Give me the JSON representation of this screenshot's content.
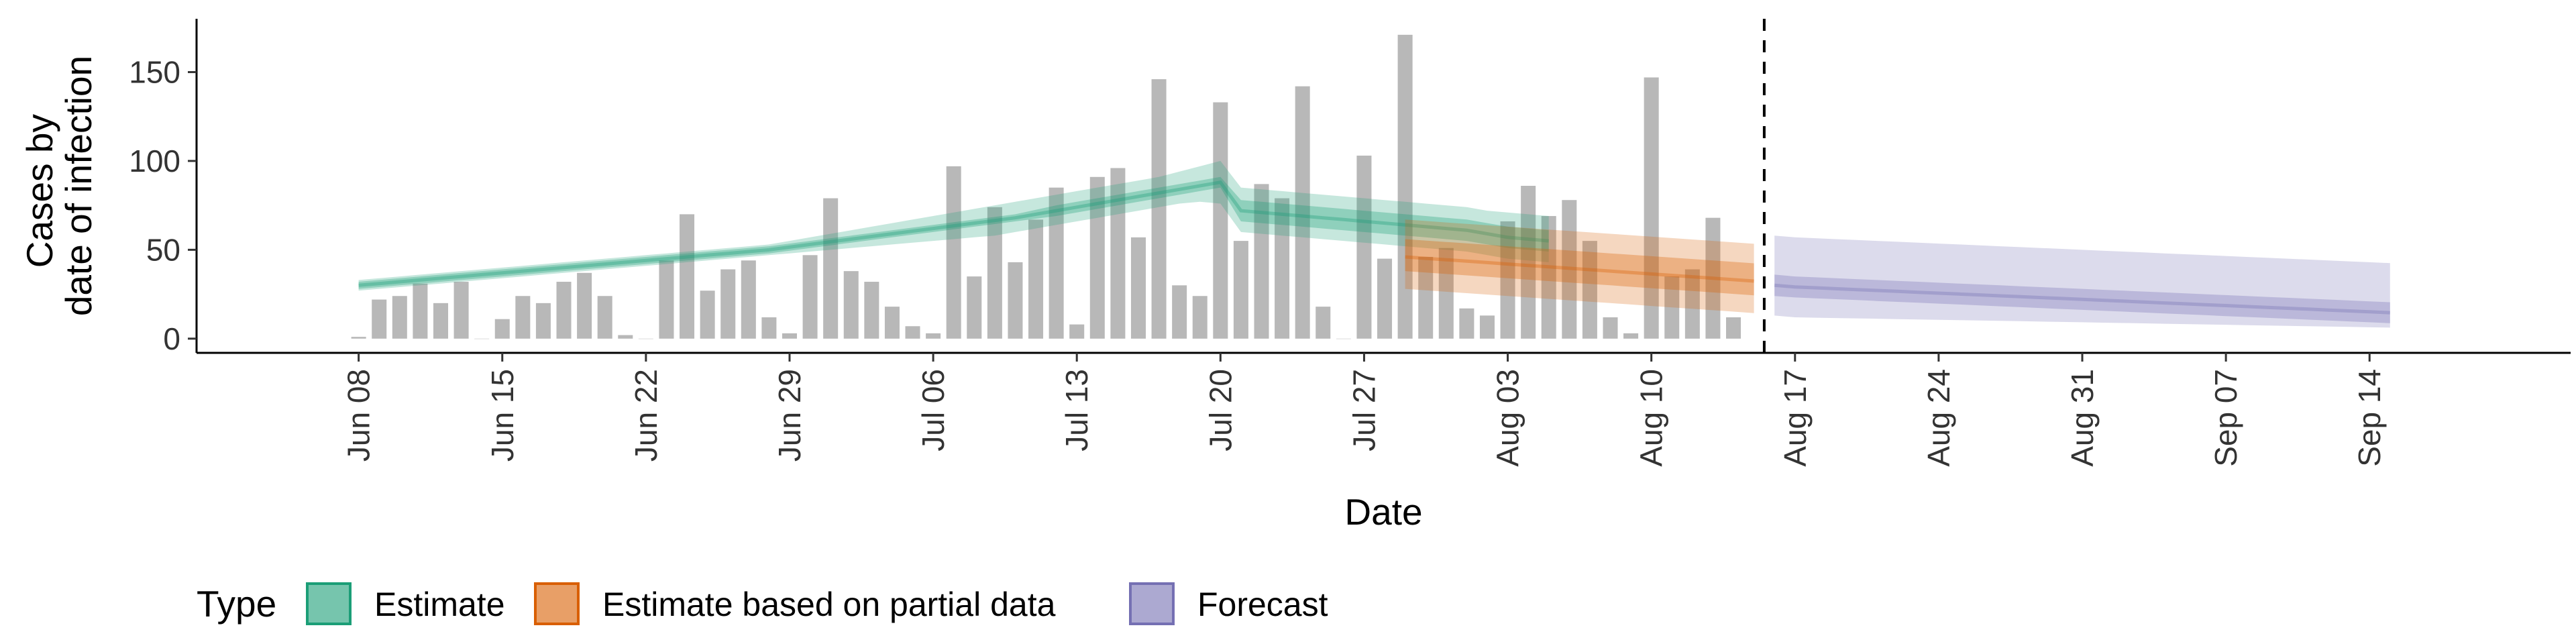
{
  "chart_data": {
    "type": "bar",
    "xlabel": "Date",
    "ylabel_lines": [
      "Cases by",
      "date of infection"
    ],
    "ylim": [
      -8,
      180
    ],
    "y_ticks": [
      0,
      50,
      100,
      150
    ],
    "y_tick_labels": [
      "0",
      "50",
      "100",
      "150"
    ],
    "x_range_day_index": [
      -7.9,
      107.8
    ],
    "x_ticks": [
      {
        "day": 0,
        "label": "Jun 08"
      },
      {
        "day": 7,
        "label": "Jun 15"
      },
      {
        "day": 14,
        "label": "Jun 22"
      },
      {
        "day": 21,
        "label": "Jun 29"
      },
      {
        "day": 28,
        "label": "Jul 06"
      },
      {
        "day": 35,
        "label": "Jul 13"
      },
      {
        "day": 42,
        "label": "Jul 20"
      },
      {
        "day": 49,
        "label": "Jul 27"
      },
      {
        "day": 56,
        "label": "Aug 03"
      },
      {
        "day": 63,
        "label": "Aug 10"
      },
      {
        "day": 70,
        "label": "Aug 17"
      },
      {
        "day": 77,
        "label": "Aug 24"
      },
      {
        "day": 84,
        "label": "Aug 31"
      },
      {
        "day": 91,
        "label": "Sep 07"
      },
      {
        "day": 98,
        "label": "Sep 14"
      }
    ],
    "bars_start_day": 0,
    "bars_values": [
      1,
      22,
      24,
      31,
      20,
      32,
      0,
      11,
      24,
      20,
      32,
      37,
      24,
      2,
      0,
      44,
      70,
      27,
      39,
      44,
      12,
      3,
      47,
      79,
      38,
      32,
      18,
      7,
      3,
      97,
      35,
      74,
      43,
      67,
      85,
      8,
      91,
      96,
      57,
      146,
      30,
      24,
      133,
      55,
      87,
      79,
      142,
      18,
      0,
      103,
      45,
      171,
      46,
      51,
      17,
      13,
      66,
      86,
      69,
      78,
      55,
      12,
      3,
      147,
      35,
      39,
      68,
      12
    ],
    "vline_day": 68.5,
    "bands": [
      {
        "type": "Estimate",
        "color": "#1b9e77",
        "start_day": 0,
        "median": [
          30,
          31,
          32,
          33,
          34,
          35,
          36,
          37,
          38,
          39,
          40,
          41,
          42,
          43,
          44,
          45,
          46,
          47,
          48,
          49,
          50,
          51.5,
          53,
          54.5,
          56,
          57.5,
          59,
          60.5,
          62,
          63.5,
          65,
          66.5,
          68,
          70,
          72,
          74,
          76,
          78,
          80,
          82,
          84,
          86,
          88,
          72,
          71,
          70,
          69,
          68,
          67,
          66,
          65,
          64,
          63,
          62,
          61,
          59,
          57,
          56,
          55
        ],
        "inner_lo": [
          28,
          29,
          30,
          31,
          32,
          33,
          34,
          35,
          36,
          37,
          38,
          39,
          40,
          41,
          42,
          43,
          44,
          45,
          46,
          47,
          48,
          49.5,
          51,
          52.5,
          54,
          55.5,
          57,
          58.5,
          60,
          61.5,
          63,
          64.5,
          66,
          67.5,
          69,
          71,
          73,
          75,
          77,
          79,
          81,
          83,
          85,
          66,
          65,
          64,
          63,
          62,
          61,
          60,
          59,
          58,
          57,
          56,
          55,
          53,
          51,
          50,
          49
        ],
        "inner_hi": [
          32,
          33,
          34,
          35,
          36,
          37,
          38,
          39,
          40,
          41,
          42,
          43,
          44,
          45,
          46,
          47,
          48,
          49,
          50,
          51,
          52,
          53.5,
          55,
          56.5,
          58,
          59.5,
          61,
          62.5,
          64,
          65.5,
          67,
          68.5,
          70,
          72.5,
          75,
          77,
          79,
          81,
          83,
          85,
          87,
          89,
          91,
          78,
          77,
          76,
          75,
          74,
          73,
          72,
          71,
          70,
          69,
          68,
          67,
          65,
          63,
          62,
          61
        ],
        "outer_lo": [
          27,
          28,
          29,
          30,
          31,
          32,
          33,
          34,
          35,
          36,
          37,
          38,
          39,
          40,
          41,
          42,
          43,
          44,
          45,
          46,
          47,
          48,
          49,
          50,
          51,
          52,
          53,
          54,
          55,
          56,
          57,
          58,
          60,
          62,
          64,
          66,
          68,
          70,
          72,
          74,
          76,
          77,
          76,
          60,
          59,
          58,
          57,
          56,
          55,
          54,
          53,
          52,
          51,
          50,
          49,
          47,
          45,
          44,
          43
        ],
        "outer_hi": [
          33,
          34,
          35,
          36,
          37,
          38,
          39,
          40,
          41,
          42,
          43,
          44,
          45,
          46,
          47,
          48,
          49,
          50,
          51,
          52,
          53,
          55,
          57,
          59,
          61,
          63,
          65,
          67,
          69,
          71,
          73,
          75,
          77,
          79,
          81,
          83,
          85,
          87,
          89,
          91,
          94,
          97,
          100,
          85,
          84,
          83,
          82,
          81,
          80,
          79,
          78,
          77,
          76,
          75,
          74,
          72,
          71,
          70,
          69
        ]
      },
      {
        "type": "Estimate based on partial data",
        "color": "#d95f02",
        "start_day": 51,
        "median": [
          46,
          45.2,
          44.4,
          43.6,
          42.8,
          42,
          41.2,
          40.4,
          39.6,
          38.8,
          38,
          37.2,
          36.4,
          35.6,
          34.8,
          34,
          33.2,
          32.4
        ],
        "inner_lo": [
          38,
          37.2,
          36.4,
          35.6,
          34.8,
          34,
          33.2,
          32.4,
          31.6,
          30.8,
          30,
          29.2,
          28.4,
          27.6,
          26.8,
          26,
          25.2,
          24.4
        ],
        "inner_hi": [
          56,
          55.2,
          54.4,
          53.6,
          52.8,
          52,
          51.2,
          50.4,
          49.6,
          48.8,
          48,
          47.2,
          46.4,
          45.6,
          44.8,
          44,
          43.2,
          42.4
        ],
        "outer_lo": [
          28,
          27.2,
          26.4,
          25.6,
          24.8,
          24,
          23.2,
          22.4,
          21.6,
          20.8,
          20,
          19.2,
          18.4,
          17.6,
          16.8,
          16,
          15.2,
          14.4
        ],
        "outer_hi": [
          67,
          66.2,
          65.4,
          64.6,
          63.8,
          63,
          62.2,
          61.4,
          60.6,
          59.8,
          59,
          58.2,
          57.4,
          56.6,
          55.8,
          55,
          54.2,
          53.4
        ]
      },
      {
        "type": "Forecast",
        "color": "#7570b3",
        "start_day": 69,
        "median": [
          30,
          29.1,
          28.6,
          28.1,
          27.6,
          27.1,
          26.6,
          26.1,
          25.6,
          25.1,
          24.6,
          24.1,
          23.6,
          23.1,
          22.6,
          22.1,
          21.6,
          21.1,
          20.6,
          20.1,
          19.6,
          19.1,
          18.6,
          18.1,
          17.6,
          17.1,
          16.6,
          16.1,
          15.6,
          15.1,
          14.6
        ],
        "inner_lo": [
          24,
          23.2,
          22.7,
          22.2,
          21.7,
          21.2,
          20.7,
          20.2,
          19.7,
          19.2,
          18.7,
          18.2,
          17.7,
          17.2,
          16.7,
          16.2,
          15.7,
          15.2,
          14.7,
          14.2,
          13.7,
          13.2,
          12.7,
          12.2,
          11.7,
          11.2,
          10.7,
          10.2,
          9.7,
          9.2,
          8.7
        ],
        "inner_hi": [
          36,
          35,
          34.5,
          34,
          33.5,
          33,
          32.5,
          32,
          31.5,
          31,
          30.5,
          30,
          29.5,
          29,
          28.5,
          28,
          27.5,
          27,
          26.5,
          26,
          25.5,
          25,
          24.5,
          24,
          23.5,
          23,
          22.5,
          22,
          21.5,
          21,
          20.5
        ],
        "outer_lo": [
          13,
          12,
          11.8,
          11.6,
          11.4,
          11.2,
          11,
          10.8,
          10.6,
          10.4,
          10.2,
          10,
          9.8,
          9.6,
          9.4,
          9.2,
          9,
          8.8,
          8.6,
          8.4,
          8.2,
          8,
          7.8,
          7.6,
          7.4,
          7.2,
          7,
          6.8,
          6.6,
          6.4,
          6.2
        ],
        "outer_hi": [
          58,
          57,
          56.5,
          56,
          55.5,
          55,
          54.5,
          54,
          53.5,
          53,
          52.5,
          52,
          51.5,
          51,
          50.5,
          50,
          49.5,
          49,
          48.5,
          48,
          47.5,
          47,
          46.5,
          46,
          45.5,
          45,
          44.5,
          44,
          43.5,
          43,
          42.5
        ]
      }
    ],
    "legend": {
      "title": "Type",
      "position": "bottom-left",
      "items": [
        {
          "label": "Estimate",
          "color": "#1b9e77"
        },
        {
          "label": "Estimate based on partial data",
          "color": "#d95f02"
        },
        {
          "label": "Forecast",
          "color": "#7570b3"
        }
      ]
    },
    "bar_color": "#b8b8b8",
    "grid": false
  }
}
